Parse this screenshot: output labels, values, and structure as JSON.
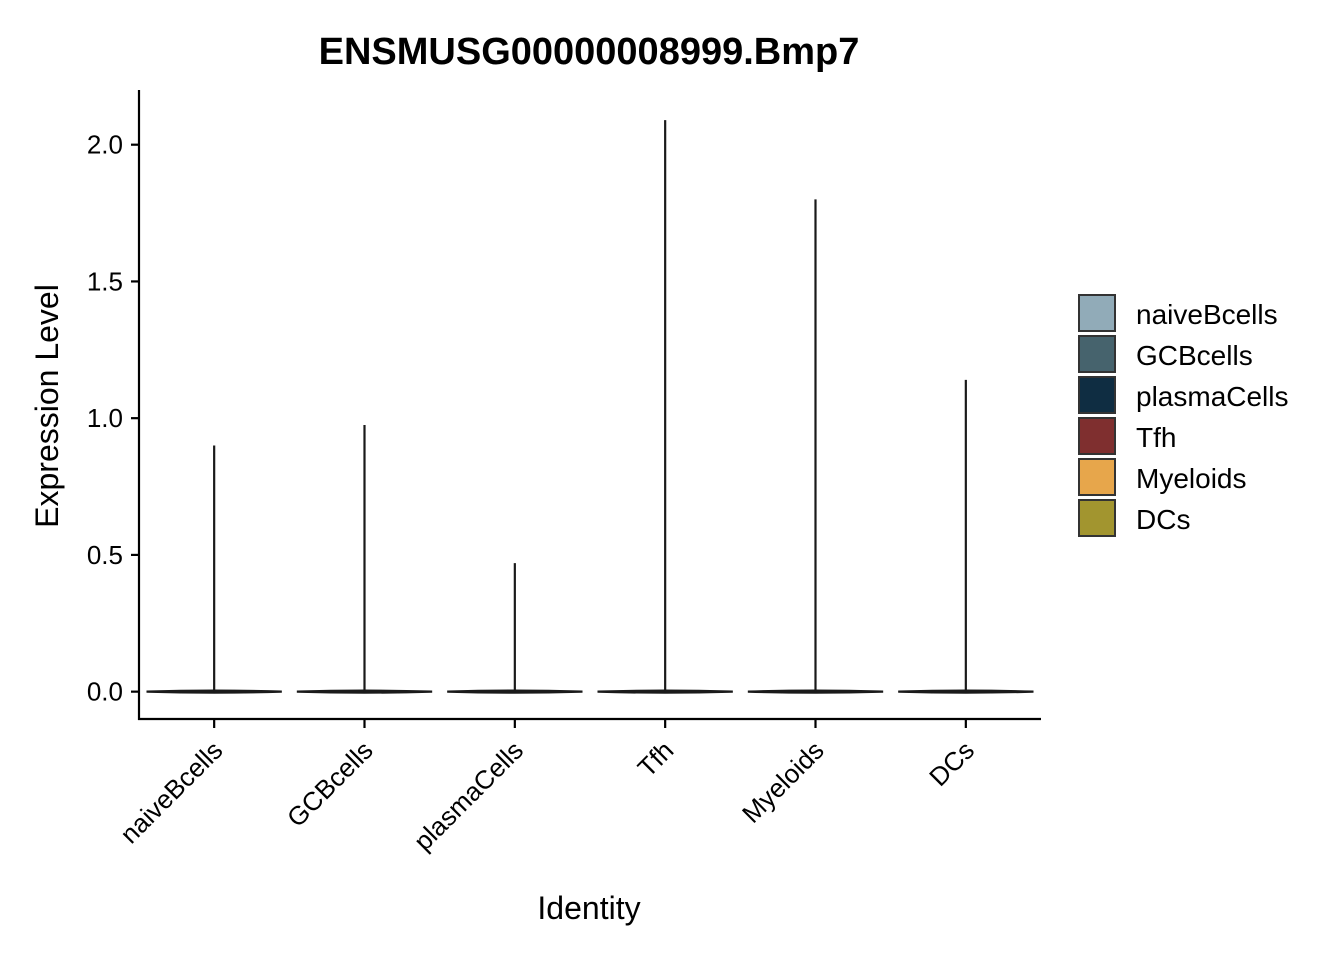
{
  "chart_data": {
    "type": "violin",
    "title": "ENSMUSG00000008999.Bmp7",
    "xlabel": "Identity",
    "ylabel": "Expression Level",
    "ylim": [
      -0.1,
      2.2
    ],
    "yticks": [
      0.0,
      0.5,
      1.0,
      1.5,
      2.0
    ],
    "ytick_labels": [
      "0.0",
      "0.5",
      "1.0",
      "1.5",
      "2.0"
    ],
    "grid": false,
    "legend_position": "right",
    "categories": [
      "naiveBcells",
      "GCBcells",
      "plasmaCells",
      "Tfh",
      "Myeloids",
      "DCs"
    ],
    "series": [
      {
        "name": "naiveBcells",
        "min": 0.0,
        "max": 0.9,
        "color": "#91abb8"
      },
      {
        "name": "GCBcells",
        "min": 0.0,
        "max": 0.975,
        "color": "#46636d"
      },
      {
        "name": "plasmaCells",
        "min": 0.0,
        "max": 0.47,
        "color": "#0f2d42"
      },
      {
        "name": "Tfh",
        "min": 0.0,
        "max": 2.09,
        "color": "#7f2f2f"
      },
      {
        "name": "Myeloids",
        "min": 0.0,
        "max": 1.8,
        "color": "#e7a64b"
      },
      {
        "name": "DCs",
        "min": 0.0,
        "max": 1.14,
        "color": "#a2952f"
      }
    ]
  }
}
